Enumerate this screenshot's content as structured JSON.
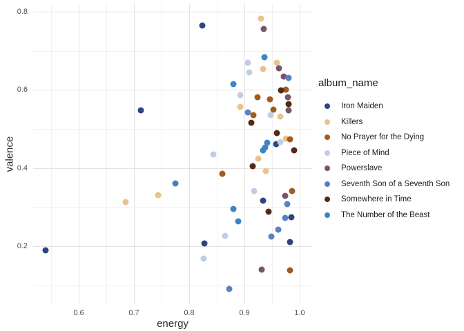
{
  "legend": {
    "title": "album_name"
  },
  "colors": {
    "grid_major": "#e3e3e3",
    "grid_minor": "#f1f1f1",
    "tick_text": "#4d4d4d",
    "axis_title_text": "#2b2b2b",
    "legend_text": "#1a1a1a",
    "background": "#ffffff"
  },
  "chart_data": {
    "type": "scatter",
    "title": "",
    "xlabel": "energy",
    "ylabel": "valence",
    "xlim": [
      0.5175,
      1.0225
    ],
    "ylim": [
      0.052,
      0.821
    ],
    "x_major_ticks": [
      0.6,
      0.7,
      0.8,
      0.9,
      1.0
    ],
    "x_tick_labels": [
      "0.6",
      "0.7",
      "0.8",
      "0.9",
      "1.0"
    ],
    "x_minor_ticks": [
      0.55,
      0.65,
      0.75,
      0.85,
      0.95
    ],
    "y_major_ticks": [
      0.2,
      0.4,
      0.6,
      0.8
    ],
    "y_tick_labels": [
      "0.2",
      "0.4",
      "0.6",
      "0.8"
    ],
    "y_minor_ticks": [
      0.1,
      0.3,
      0.5,
      0.7
    ],
    "grid": "major+minor",
    "legend_position": "right",
    "series": [
      {
        "name": "Iron Maiden",
        "color": "#2d4580",
        "points": [
          [
            0.54,
            0.19
          ],
          [
            0.712,
            0.547
          ],
          [
            0.824,
            0.765
          ],
          [
            0.828,
            0.208
          ],
          [
            0.934,
            0.317
          ],
          [
            0.958,
            0.462
          ],
          [
            0.982,
            0.211
          ],
          [
            0.985,
            0.274
          ]
        ]
      },
      {
        "name": "Killers",
        "color": "#eac28e",
        "points": [
          [
            0.685,
            0.313
          ],
          [
            0.744,
            0.331
          ],
          [
            0.892,
            0.556
          ],
          [
            0.925,
            0.425
          ],
          [
            0.93,
            0.782
          ],
          [
            0.934,
            0.653
          ],
          [
            0.939,
            0.393
          ],
          [
            0.959,
            0.669
          ],
          [
            0.965,
            0.531
          ],
          [
            0.975,
            0.476
          ]
        ]
      },
      {
        "name": "No Prayer for the Dying",
        "color": "#a25b1e",
        "points": [
          [
            0.86,
            0.386
          ],
          [
            0.916,
            0.535
          ],
          [
            0.924,
            0.582
          ],
          [
            0.946,
            0.575
          ],
          [
            0.952,
            0.55
          ],
          [
            0.975,
            0.6
          ],
          [
            0.982,
            0.474
          ],
          [
            0.982,
            0.138
          ],
          [
            0.986,
            0.342
          ]
        ]
      },
      {
        "name": "Piece of Mind",
        "color": "#c0cde6",
        "points": [
          [
            0.826,
            0.168
          ],
          [
            0.844,
            0.435
          ],
          [
            0.865,
            0.227
          ],
          [
            0.892,
            0.586
          ],
          [
            0.906,
            0.669
          ],
          [
            0.909,
            0.645
          ],
          [
            0.917,
            0.342
          ],
          [
            0.947,
            0.536
          ],
          [
            0.965,
            0.467
          ]
        ]
      },
      {
        "name": "Powerslave",
        "color": "#74566d",
        "points": [
          [
            0.931,
            0.14
          ],
          [
            0.935,
            0.756
          ],
          [
            0.962,
            0.655
          ],
          [
            0.971,
            0.634
          ],
          [
            0.974,
            0.329
          ],
          [
            0.979,
            0.582
          ],
          [
            0.98,
            0.548
          ]
        ]
      },
      {
        "name": "Seventh Son of a Seventh Son",
        "color": "#5b80bf",
        "points": [
          [
            0.872,
            0.09
          ],
          [
            0.906,
            0.542
          ],
          [
            0.949,
            0.224
          ],
          [
            0.961,
            0.242
          ],
          [
            0.974,
            0.273
          ],
          [
            0.977,
            0.308
          ],
          [
            0.98,
            0.631
          ]
        ]
      },
      {
        "name": "Somewhere in Time",
        "color": "#552a13",
        "points": [
          [
            0.912,
            0.515
          ],
          [
            0.915,
            0.404
          ],
          [
            0.944,
            0.288
          ],
          [
            0.959,
            0.49
          ],
          [
            0.966,
            0.598
          ],
          [
            0.98,
            0.563
          ],
          [
            0.99,
            0.446
          ]
        ]
      },
      {
        "name": "The Number of the Beast",
        "color": "#3d83c6",
        "points": [
          [
            0.775,
            0.361
          ],
          [
            0.88,
            0.615
          ],
          [
            0.88,
            0.296
          ],
          [
            0.889,
            0.264
          ],
          [
            0.934,
            0.445
          ],
          [
            0.937,
            0.453
          ],
          [
            0.941,
            0.464
          ],
          [
            0.936,
            0.683
          ]
        ]
      }
    ]
  }
}
